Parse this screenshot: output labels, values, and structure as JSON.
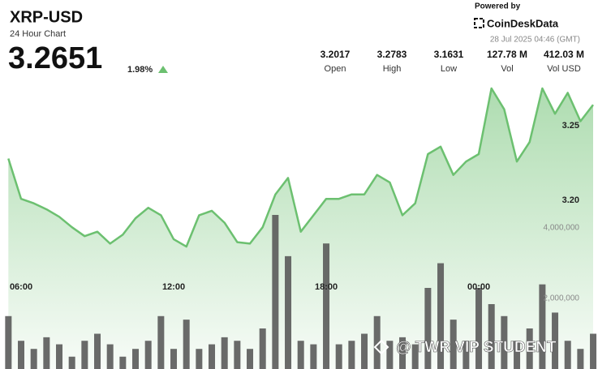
{
  "header": {
    "title": "XRP-USD",
    "subtitle": "24 Hour Chart",
    "price": "3.2651",
    "change": "1.98%",
    "powered_by": "Powered by",
    "brand": "CoinDeskData",
    "timestamp": "28 Jul 2025 04:46 (GMT)",
    "stats": [
      {
        "value": "3.2017",
        "label": "Open"
      },
      {
        "value": "3.2783",
        "label": "High"
      },
      {
        "value": "3.1631",
        "label": "Low"
      },
      {
        "value": "127.78 M",
        "label": "Vol"
      },
      {
        "value": "412.03 M",
        "label": "Vol USD"
      }
    ],
    "watermark": "@ TWR VIP STUDENT"
  },
  "chart_data": {
    "type": "line",
    "grid": false,
    "xlim": [
      5.17,
      28.69
    ],
    "xticks": [
      {
        "value": 6,
        "label": "06:00"
      },
      {
        "value": 12,
        "label": "12:00"
      },
      {
        "value": 18,
        "label": "18:00"
      },
      {
        "value": 24,
        "label": "00:00"
      }
    ],
    "ylim": [
      3.087,
      3.2826
    ],
    "yticks": [
      {
        "value": 3.2,
        "label": "3.20"
      },
      3.25
    ],
    "y2lim": [
      0,
      8280000
    ],
    "y2ticks": [
      {
        "value": 2000000,
        "label": "2,000,000"
      },
      {
        "value": 4000000,
        "label": "4,000,000"
      }
    ],
    "series": [
      {
        "type": "line",
        "color": "#6cc070",
        "axis": "y",
        "x": [
          5.5,
          6,
          6.5,
          7,
          7.5,
          8,
          8.5,
          9,
          9.5,
          10,
          10.5,
          11,
          11.5,
          12,
          12.5,
          13,
          13.5,
          14,
          14.5,
          15,
          15.5,
          16,
          16.5,
          17,
          17.5,
          18,
          18.5,
          19,
          19.5,
          20,
          20.5,
          21,
          21.5,
          22,
          22.5,
          23,
          23.5,
          24,
          24.5,
          25,
          25.5,
          26,
          26.5,
          27,
          27.5,
          28,
          28.5
        ],
        "values": [
          3.228,
          3.201,
          3.198,
          3.194,
          3.189,
          3.182,
          3.176,
          3.179,
          3.171,
          3.177,
          3.188,
          3.195,
          3.19,
          3.174,
          3.169,
          3.19,
          3.193,
          3.185,
          3.172,
          3.171,
          3.182,
          3.204,
          3.215,
          3.179,
          3.19,
          3.201,
          3.201,
          3.204,
          3.204,
          3.217,
          3.212,
          3.19,
          3.198,
          3.231,
          3.236,
          3.217,
          3.226,
          3.231,
          3.275,
          3.261,
          3.226,
          3.239,
          3.275,
          3.258,
          3.272,
          3.253,
          3.264
        ]
      },
      {
        "type": "bar",
        "color": "#5a5a5a",
        "axis": "y2",
        "x": [
          5.5,
          6,
          6.5,
          7,
          7.5,
          8,
          8.5,
          9,
          9.5,
          10,
          10.5,
          11,
          11.5,
          12,
          12.5,
          13,
          13.5,
          14,
          14.5,
          15,
          15.5,
          16,
          16.5,
          17,
          17.5,
          18,
          18.5,
          19,
          19.5,
          20,
          20.5,
          21,
          21.5,
          22,
          22.5,
          23,
          23.5,
          24,
          24.5,
          25,
          25.5,
          26,
          26.5,
          27,
          27.5,
          28,
          28.5
        ],
        "values": [
          1500000,
          800000,
          570000,
          900000,
          700000,
          350000,
          800000,
          1000000,
          700000,
          350000,
          570000,
          800000,
          1500000,
          570000,
          1400000,
          570000,
          700000,
          900000,
          800000,
          570000,
          1150000,
          4370000,
          3200000,
          800000,
          700000,
          3560000,
          700000,
          800000,
          1000000,
          1500000,
          800000,
          900000,
          700000,
          2300000,
          3000000,
          1400000,
          800000,
          2300000,
          1840000,
          1500000,
          800000,
          1150000,
          2400000,
          1600000,
          800000,
          570000,
          1000000
        ]
      }
    ]
  }
}
